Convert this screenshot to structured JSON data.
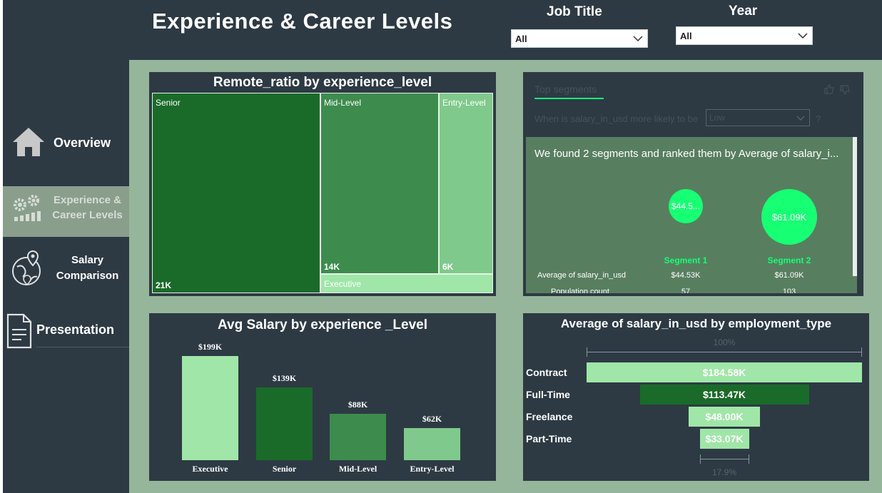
{
  "header": {
    "title": "Experience & Career Levels",
    "job_title_label": "Job Title",
    "job_title_value": "All",
    "year_label": "Year",
    "year_value": "All"
  },
  "nav": [
    {
      "label": "Overview",
      "icon": "home-icon"
    },
    {
      "label_line1": "Experience &",
      "label_line2": "Career Levels",
      "icon": "gears-icon",
      "active": true
    },
    {
      "label_line1": "Salary",
      "label_line2": "Comparison",
      "icon": "globe-pin-icon"
    },
    {
      "label": "Presentation",
      "icon": "document-icon"
    }
  ],
  "treemap": {
    "title": "Remote_ratio by experience_level",
    "cells": [
      {
        "label": "Senior",
        "value": "21K",
        "color": "#1a6b29"
      },
      {
        "label": "Mid-Level",
        "value": "14K",
        "color": "#3d8c4e"
      },
      {
        "label": "Entry-Level",
        "value": "6K",
        "color": "#80c98c"
      },
      {
        "label": "Executive",
        "value": "",
        "color": "#a0e6a8"
      }
    ]
  },
  "segments": {
    "tab_label": "Top segments",
    "question_pre": "When is salary_in_usd more likely to be",
    "question_value": "Low",
    "question_post": "?",
    "summary": "We found 2 segments and ranked them by Average of salary_i...",
    "bubbles": [
      {
        "text": "$44.5...",
        "name": "Segment 1"
      },
      {
        "text": "$61.09K",
        "name": "Segment 2"
      }
    ],
    "rows": [
      {
        "label": "Average of salary_in_usd",
        "values": [
          "$44.53K",
          "$61.09K"
        ]
      },
      {
        "label": "Population count",
        "values": [
          "57",
          "103"
        ]
      }
    ],
    "accent": "#17ff73"
  },
  "chart_data": [
    {
      "type": "bar",
      "title": "Avg Salary by experience _Level",
      "categories": [
        "Executive",
        "Senior",
        "Mid-Level",
        "Entry-Level"
      ],
      "values": [
        199,
        139,
        88,
        62
      ],
      "data_labels": [
        "$199K",
        "$139K",
        "$88K",
        "$62K"
      ],
      "colors": [
        "#a0e6a8",
        "#1a6b29",
        "#3d8c4e",
        "#80c98c"
      ],
      "ylim": [
        0,
        199
      ]
    },
    {
      "type": "bar",
      "orientation": "funnel",
      "title": "Average of salary_in_usd by employment_type",
      "categories": [
        "Contract",
        "Full-Time",
        "Freelance",
        "Part-Time"
      ],
      "values": [
        184.58,
        113.47,
        48.0,
        33.07
      ],
      "data_labels": [
        "$184.58K",
        "$113.47K",
        "$48.00K",
        "$33.07K"
      ],
      "colors": [
        "#a0e6a8",
        "#1a6b29",
        "#a0e6a8",
        "#a0e6a8"
      ],
      "top_label": "100%",
      "bottom_label": "17.9%"
    }
  ]
}
